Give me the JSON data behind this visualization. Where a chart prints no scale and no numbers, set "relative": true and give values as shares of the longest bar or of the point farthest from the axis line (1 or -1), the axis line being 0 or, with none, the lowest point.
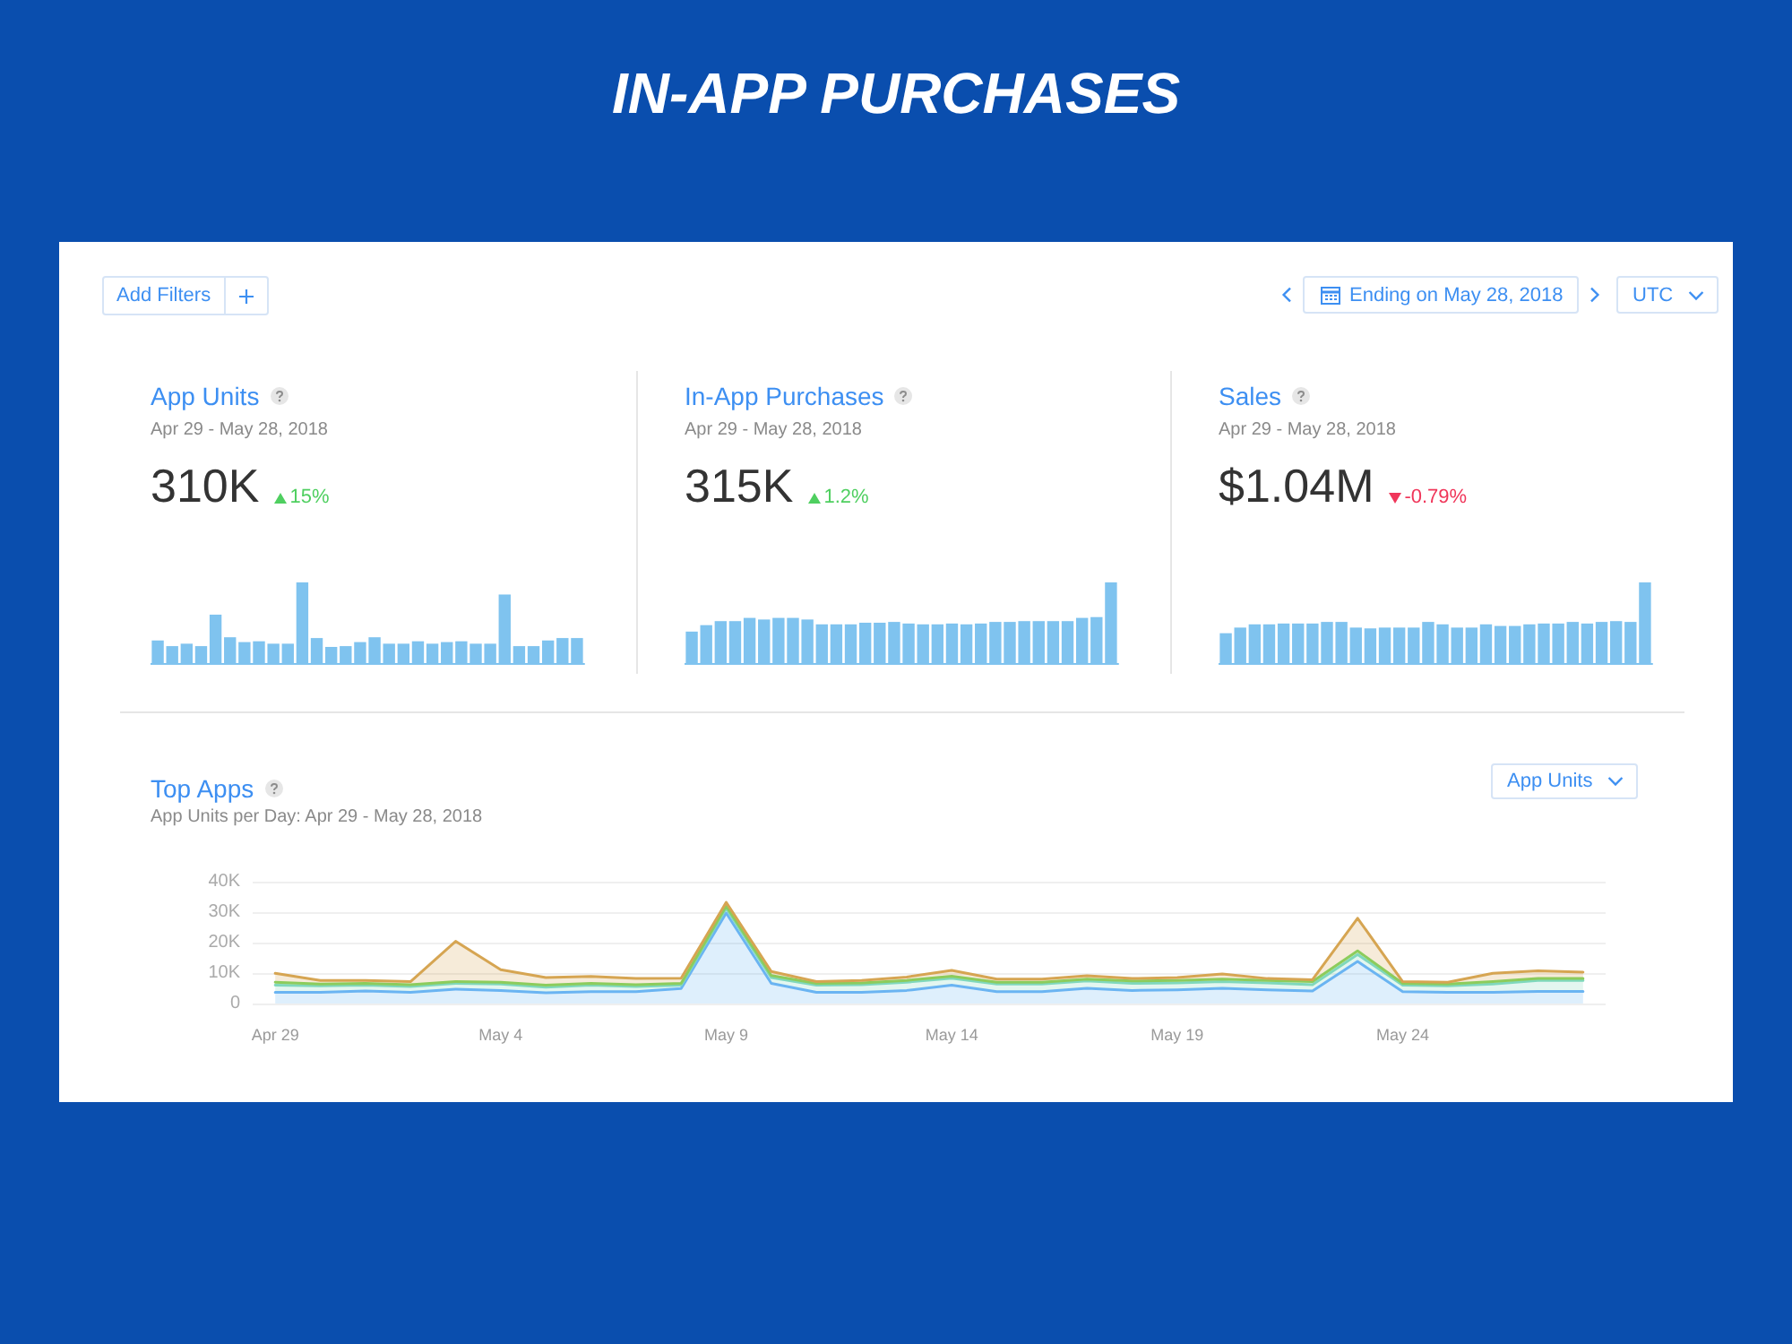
{
  "chart_data": [
    {
      "type": "other",
      "title": "IN-APP PURCHASES",
      "annotations": [
        "Add Filters",
        "Ending on May 28, 2018",
        "UTC"
      ]
    },
    {
      "type": "bar",
      "title": "App Units",
      "subtitle": "Apr 29 - May 28, 2018",
      "annotations": [
        "310K",
        "15%"
      ],
      "relative": true,
      "color": "#7fc3ef",
      "categories": [
        null,
        null,
        null,
        null,
        null,
        null,
        null,
        null,
        null,
        null,
        null,
        null,
        null,
        null,
        null,
        null,
        null,
        null,
        null,
        null,
        null,
        null,
        null,
        null,
        null,
        null,
        null,
        null,
        null,
        null
      ],
      "values": [
        0.28,
        0.21,
        0.24,
        0.21,
        0.6,
        0.32,
        0.26,
        0.27,
        0.24,
        0.24,
        1,
        0.31,
        0.2,
        0.21,
        0.26,
        0.32,
        0.24,
        0.24,
        0.27,
        0.24,
        0.26,
        0.27,
        0.24,
        0.24,
        0.85,
        0.21,
        0.21,
        0.28,
        0.31,
        0.31
      ]
    },
    {
      "type": "bar",
      "title": "In-App Purchases",
      "subtitle": "Apr 29 - May 28, 2018",
      "annotations": [
        "315K",
        "1.2%"
      ],
      "relative": true,
      "color": "#7fc3ef",
      "categories": [
        null,
        null,
        null,
        null,
        null,
        null,
        null,
        null,
        null,
        null,
        null,
        null,
        null,
        null,
        null,
        null,
        null,
        null,
        null,
        null,
        null,
        null,
        null,
        null,
        null,
        null,
        null,
        null,
        null,
        null
      ],
      "values": [
        0.39,
        0.47,
        0.52,
        0.52,
        0.56,
        0.54,
        0.56,
        0.56,
        0.54,
        0.48,
        0.48,
        0.48,
        0.5,
        0.5,
        0.51,
        0.49,
        0.48,
        0.48,
        0.49,
        0.48,
        0.49,
        0.51,
        0.51,
        0.52,
        0.52,
        0.52,
        0.52,
        0.56,
        0.57,
        1
      ]
    },
    {
      "type": "bar",
      "title": "Sales",
      "subtitle": "Apr 29 - May 28, 2018",
      "annotations": [
        "$1.04M",
        "-0.79%"
      ],
      "relative": true,
      "color": "#7fc3ef",
      "categories": [
        null,
        null,
        null,
        null,
        null,
        null,
        null,
        null,
        null,
        null,
        null,
        null,
        null,
        null,
        null,
        null,
        null,
        null,
        null,
        null,
        null,
        null,
        null,
        null,
        null,
        null,
        null,
        null,
        null,
        null
      ],
      "values": [
        0.37,
        0.44,
        0.48,
        0.48,
        0.49,
        0.49,
        0.49,
        0.51,
        0.51,
        0.44,
        0.43,
        0.44,
        0.44,
        0.44,
        0.51,
        0.48,
        0.44,
        0.44,
        0.48,
        0.46,
        0.46,
        0.48,
        0.49,
        0.49,
        0.51,
        0.49,
        0.51,
        0.52,
        0.51,
        1
      ]
    },
    {
      "type": "area",
      "title": "Top Apps",
      "subtitle": "App Units per Day: Apr 29 - May 28, 2018",
      "annotations": [
        "App Units"
      ],
      "stacked": true,
      "categories": [
        "Apr 29",
        null,
        null,
        null,
        null,
        "May 4",
        null,
        null,
        null,
        null,
        "May 9",
        null,
        null,
        null,
        null,
        "May 14",
        null,
        null,
        null,
        null,
        "May 19",
        null,
        null,
        null,
        null,
        "May 24",
        null,
        null,
        null,
        null
      ],
      "ylim": [
        0,
        40000
      ],
      "yticks": [
        0,
        {
          "value": 10000,
          "label": "10K"
        },
        {
          "value": 20000,
          "label": "20K"
        },
        {
          "value": 30000,
          "label": "30K"
        },
        {
          "value": 40000,
          "label": "40K"
        }
      ],
      "grid": "y",
      "series": [
        {
          "color": "#6ab4f2",
          "values": [
            3700,
            3700,
            4100,
            3700,
            4700,
            4300,
            3500,
            3900,
            3900,
            4900,
            29700,
            6600,
            3700,
            3700,
            4300,
            6000,
            3900,
            3900,
            5000,
            4300,
            4500,
            5000,
            4500,
            4100,
            13800,
            3900,
            3700,
            3700,
            4000,
            4000
          ]
        },
        {
          "color": "#7fd8bc",
          "values": [
            2300,
            2100,
            1900,
            1900,
            1900,
            2100,
            1900,
            2100,
            1700,
            1100,
            1600,
            1900,
            2300,
            2500,
            2700,
            2300,
            2500,
            2500,
            2400,
            2300,
            2300,
            2200,
            2300,
            2100,
            2300,
            2100,
            2100,
            2700,
            3600,
            3600
          ]
        },
        {
          "color": "#8ccc5c",
          "values": [
            1000,
            600,
            600,
            600,
            600,
            600,
            600,
            600,
            600,
            600,
            700,
            700,
            600,
            600,
            600,
            700,
            600,
            600,
            600,
            800,
            800,
            800,
            800,
            1000,
            1200,
            600,
            600,
            800,
            600,
            600
          ]
        },
        {
          "color": "#d6a552",
          "values": [
            2900,
            1200,
            1000,
            1000,
            13200,
            4100,
            2500,
            2300,
            2000,
            1700,
            1200,
            1300,
            600,
            800,
            1100,
            1900,
            1000,
            1000,
            1100,
            800,
            900,
            1700,
            600,
            600,
            10700,
            600,
            600,
            2700,
            2500,
            2100
          ]
        }
      ]
    }
  ]
}
